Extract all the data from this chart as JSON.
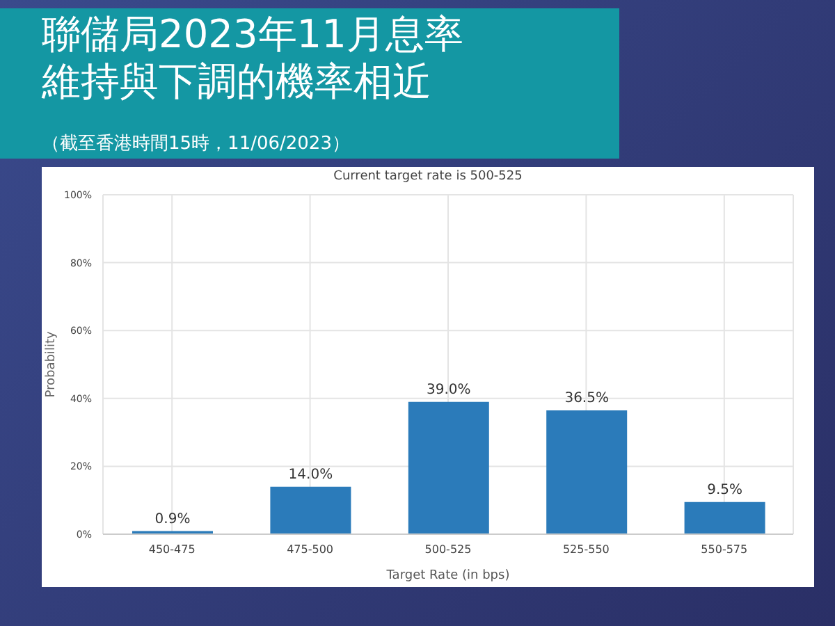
{
  "chart_data": {
    "type": "bar",
    "title": "聯儲局2023年11月息率維持與下調的機率相近",
    "subtitle": "Current target rate is 500-525",
    "annotations": [
      "（截至香港時間15時，11/06/2023）"
    ],
    "xlabel": "Target Rate (in bps)",
    "ylabel": "Probability",
    "categories": [
      "450-475",
      "475-500",
      "500-525",
      "525-550",
      "550-575"
    ],
    "values": [
      0.9,
      14.0,
      39.0,
      36.5,
      9.5
    ],
    "value_labels": [
      "0.9%",
      "14.0%",
      "39.0%",
      "36.5%",
      "9.5%"
    ],
    "color": "#2b7bba",
    "ylim": [
      0,
      100
    ],
    "yticks": [
      {
        "value": 0,
        "label": "0%"
      },
      {
        "value": 20,
        "label": "20%"
      },
      {
        "value": 40,
        "label": "40%"
      },
      {
        "value": 60,
        "label": "60%"
      },
      {
        "value": 80,
        "label": "80%"
      },
      {
        "value": 100,
        "label": "100%"
      }
    ],
    "grid": true
  }
}
